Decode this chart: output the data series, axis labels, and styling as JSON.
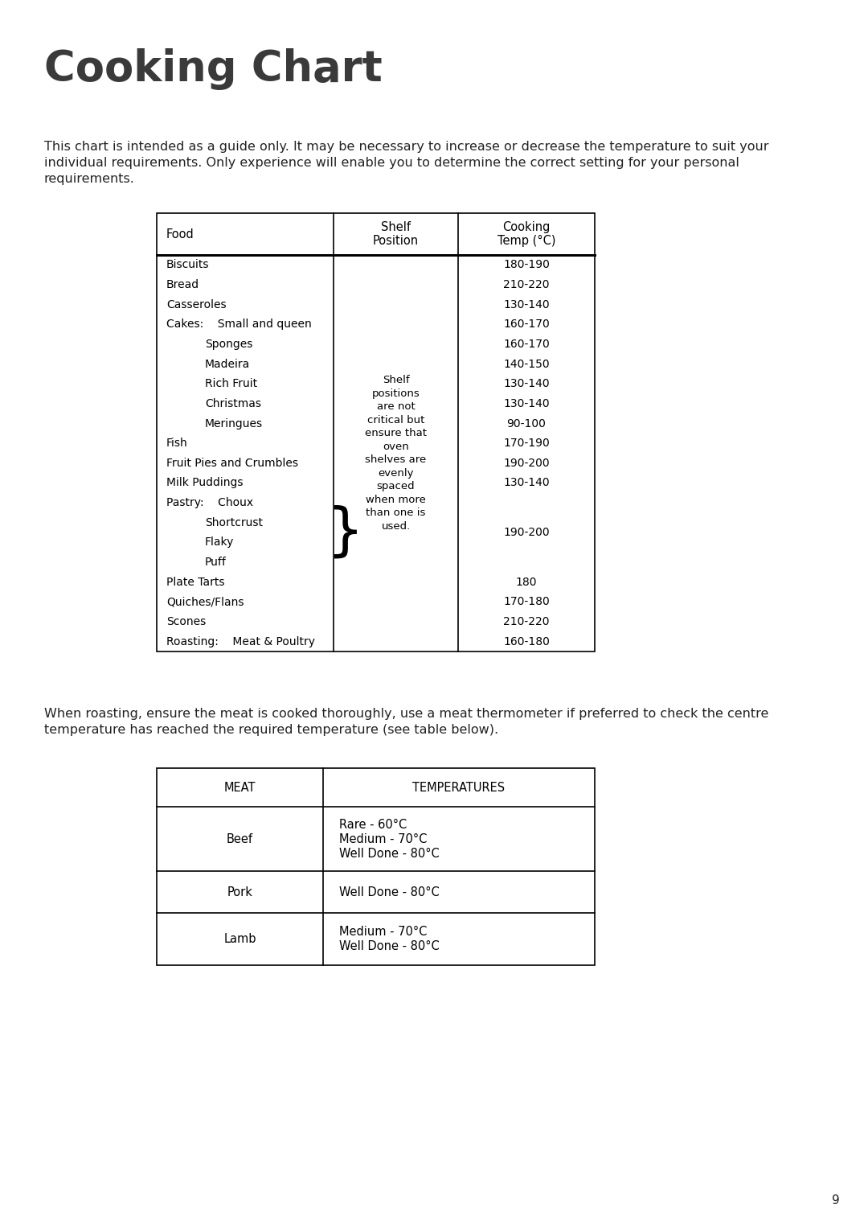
{
  "title": "Cooking Chart",
  "title_fontsize": 38,
  "title_fontweight": "bold",
  "title_color": "#3a3a3a",
  "body_text_line1": "This chart is intended as a guide only. It may be necessary to increase or decrease the temperature to suit your",
  "body_text_line2": "individual requirements. Only experience will enable you to determine the correct setting for your personal",
  "body_text_line3": "requirements.",
  "body_fontsize": 11.5,
  "body_color": "#222222",
  "roasting_line1": "When roasting, ensure the meat is cooked thoroughly, use a meat thermometer if preferred to check the centre",
  "roasting_line2": "temperature has reached the required temperature (see table below).",
  "page_number": "9",
  "bg_color": "#ffffff",
  "table1": {
    "col_headers": [
      "Food",
      "Shelf\nPosition",
      "Cooking\nTemp (°C)"
    ],
    "food_items": [
      {
        "indent": 0,
        "label": "Biscuits",
        "temp": "180-190"
      },
      {
        "indent": 0,
        "label": "Bread",
        "temp": "210-220"
      },
      {
        "indent": 0,
        "label": "Casseroles",
        "temp": "130-140"
      },
      {
        "indent": 0,
        "label": "Cakes:",
        "sub": "Small and queen",
        "temp": "160-170"
      },
      {
        "indent": 1,
        "label": "Sponges",
        "temp": "160-170"
      },
      {
        "indent": 1,
        "label": "Madeira",
        "temp": "140-150"
      },
      {
        "indent": 1,
        "label": "Rich Fruit",
        "temp": "130-140"
      },
      {
        "indent": 1,
        "label": "Christmas",
        "temp": "130-140"
      },
      {
        "indent": 1,
        "label": "Meringues",
        "temp": "90-100"
      },
      {
        "indent": 0,
        "label": "Fish",
        "temp": "170-190"
      },
      {
        "indent": 0,
        "label": "Fruit Pies and Crumbles",
        "temp": "190-200"
      },
      {
        "indent": 0,
        "label": "Milk Puddings",
        "temp": "130-140"
      },
      {
        "indent": 0,
        "label": "Pastry:",
        "sub": "Choux",
        "temp": "",
        "brace": true
      },
      {
        "indent": 1,
        "label": "Shortcrust",
        "temp": "",
        "brace": true
      },
      {
        "indent": 1,
        "label": "Flaky",
        "temp": "",
        "brace": true
      },
      {
        "indent": 1,
        "label": "Puff",
        "temp": "",
        "brace": true
      },
      {
        "indent": 0,
        "label": "Plate Tarts",
        "temp": "180"
      },
      {
        "indent": 0,
        "label": "Quiches/Flans",
        "temp": "170-180"
      },
      {
        "indent": 0,
        "label": "Scones",
        "temp": "210-220"
      },
      {
        "indent": 0,
        "label": "Roasting:",
        "sub": "Meat & Poultry",
        "temp": "160-180"
      }
    ],
    "shelf_text": "Shelf\npositions\nare not\ncritical but\nensure that\noven\nshelves are\nevenly\nspaced\nwhen more\nthan one is\nused.",
    "pastry_brace_temp": "190-200"
  },
  "table2": {
    "col_headers": [
      "MEAT",
      "TEMPERATURES"
    ],
    "rows": [
      {
        "meat": "Beef",
        "temps": [
          "Rare - 60°C",
          "Medium - 70°C",
          "Well Done - 80°C"
        ]
      },
      {
        "meat": "Pork",
        "temps": [
          "Well Done - 80°C"
        ]
      },
      {
        "meat": "Lamb",
        "temps": [
          "Medium - 70°C",
          "Well Done - 80°C"
        ]
      }
    ]
  }
}
